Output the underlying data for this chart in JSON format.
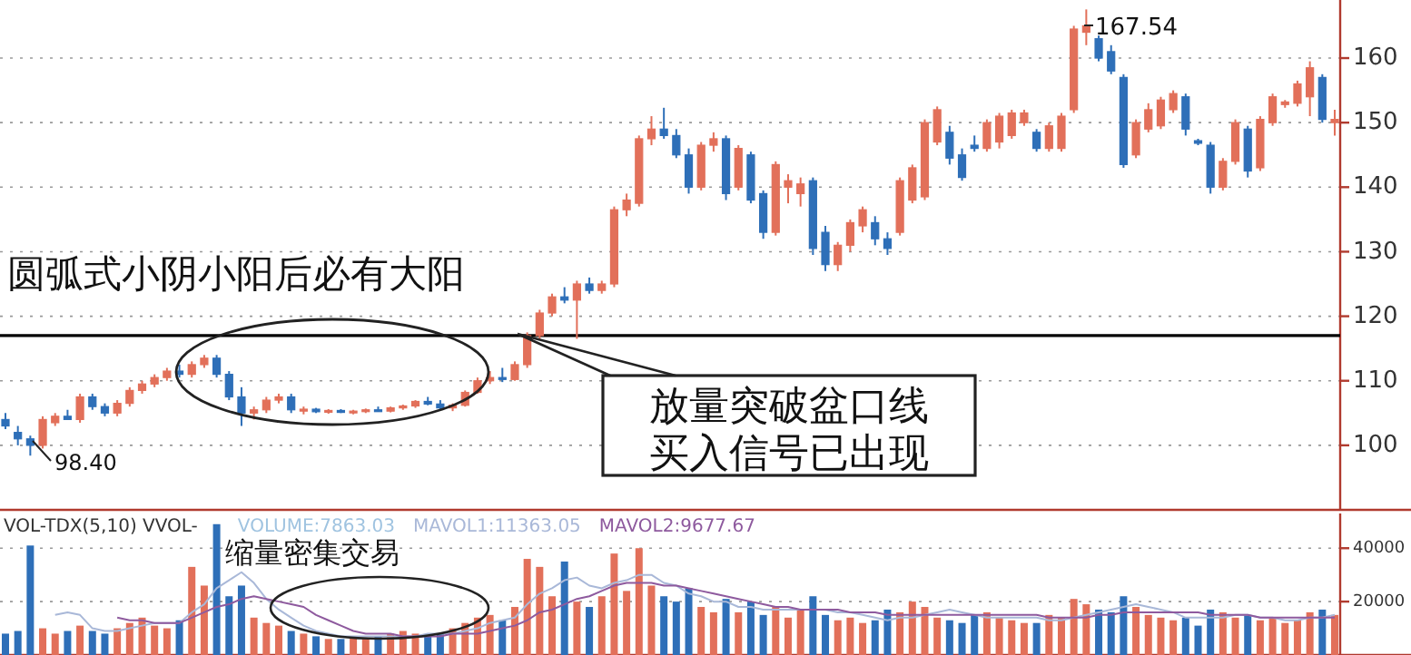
{
  "chart_data": [
    {
      "type": "candlestick",
      "tick_labels": "y",
      "grid": "y",
      "categories": [
        null,
        null,
        null,
        null,
        null,
        null,
        null,
        null,
        null,
        null,
        null,
        null,
        null,
        null,
        null,
        null,
        null,
        null,
        null,
        null,
        null,
        null,
        null,
        null,
        null,
        null,
        null,
        null,
        null,
        null,
        null,
        null,
        null,
        null,
        null,
        null,
        null,
        null,
        null,
        null,
        null,
        null,
        null,
        null,
        null,
        null,
        null,
        null,
        null,
        null,
        null,
        null,
        null,
        null,
        null,
        null,
        null,
        null,
        null,
        null,
        null,
        null,
        null,
        null,
        null,
        null,
        null,
        null,
        null,
        null,
        null,
        null,
        null,
        null,
        null,
        null,
        null,
        null,
        null,
        null,
        null,
        null,
        null,
        null,
        null,
        null,
        null,
        null,
        null,
        null,
        null,
        null,
        null,
        null,
        null,
        null,
        null,
        null,
        null,
        null,
        null,
        null,
        null,
        null,
        null,
        null,
        null,
        null
      ],
      "ohlc": [
        [
          104,
          105,
          102.5,
          103
        ],
        [
          102,
          103,
          100,
          101
        ],
        [
          101,
          101.5,
          98.4,
          100
        ],
        [
          100,
          104.5,
          99.5,
          104
        ],
        [
          103.5,
          105,
          103,
          104.5
        ],
        [
          104.5,
          105.5,
          104,
          104
        ],
        [
          104,
          108,
          103.5,
          107.5
        ],
        [
          107.5,
          108,
          105.5,
          106
        ],
        [
          106,
          106.5,
          104.5,
          105
        ],
        [
          105,
          107,
          104.5,
          106.5
        ],
        [
          106.5,
          109,
          106,
          108.5
        ],
        [
          108.5,
          110,
          108,
          109.5
        ],
        [
          109.5,
          111,
          109,
          110.5
        ],
        [
          110.5,
          112,
          110,
          111.5
        ],
        [
          111.5,
          112.5,
          110.5,
          111
        ],
        [
          111,
          113,
          110.5,
          112.5
        ],
        [
          112.5,
          114,
          112,
          113.5
        ],
        [
          113.5,
          114,
          110.5,
          111
        ],
        [
          111,
          111.5,
          107,
          107.5
        ],
        [
          107.5,
          109,
          103,
          105
        ],
        [
          105,
          106,
          104,
          105.5
        ],
        [
          105.5,
          107.5,
          105,
          107
        ],
        [
          107,
          108,
          106.5,
          107.5
        ],
        [
          107.5,
          108,
          105,
          105.5
        ],
        [
          105.3,
          106,
          104.8,
          105.6
        ],
        [
          105.6,
          105.8,
          105,
          105.2
        ],
        [
          105.2,
          105.6,
          104.9,
          105.4
        ],
        [
          105.4,
          105.6,
          105,
          105.1
        ],
        [
          105.1,
          105.5,
          104.8,
          105.3
        ],
        [
          105.3,
          105.7,
          105,
          105.5
        ],
        [
          105.5,
          106,
          105.2,
          105.3
        ],
        [
          105.3,
          106,
          105.1,
          105.8
        ],
        [
          105.8,
          106.3,
          105.5,
          106.1
        ],
        [
          106.1,
          107,
          105.8,
          106.8
        ],
        [
          106.8,
          107.5,
          106.2,
          106.4
        ],
        [
          106.4,
          107,
          105.6,
          105.8
        ],
        [
          105.8,
          106.5,
          105.3,
          106.2
        ],
        [
          106.2,
          108.5,
          106,
          108.2
        ],
        [
          108.2,
          110.5,
          108,
          110
        ],
        [
          110,
          111.5,
          109.5,
          110.5
        ],
        [
          110.5,
          112,
          109.8,
          110.2
        ],
        [
          110.2,
          113,
          110,
          112.5
        ],
        [
          112.5,
          117.5,
          112,
          117
        ],
        [
          117,
          121,
          116.5,
          120.5
        ],
        [
          120.5,
          123.5,
          120,
          123
        ],
        [
          123,
          124.5,
          122,
          122.5
        ],
        [
          122.5,
          125.5,
          116.5,
          125
        ],
        [
          125,
          126,
          123.5,
          124
        ],
        [
          124,
          125.5,
          123.5,
          125
        ],
        [
          125,
          137,
          124.5,
          136.5
        ],
        [
          136.5,
          139,
          135.5,
          138
        ],
        [
          137.5,
          148,
          137,
          147.5
        ],
        [
          147.5,
          151,
          146.5,
          149
        ],
        [
          149,
          152.3,
          147.5,
          148
        ],
        [
          148,
          149,
          144.5,
          145
        ],
        [
          145,
          146,
          139,
          140
        ],
        [
          140,
          147,
          139.5,
          146.5
        ],
        [
          146.5,
          148.5,
          145.5,
          147.5
        ],
        [
          147.5,
          148,
          138,
          139
        ],
        [
          140,
          146.5,
          139.5,
          146
        ],
        [
          145,
          145.5,
          137.5,
          138
        ],
        [
          139,
          139.5,
          132,
          133
        ],
        [
          133,
          144,
          132.5,
          143.5
        ],
        [
          140,
          142,
          137.5,
          141
        ],
        [
          139,
          141.5,
          137,
          140.5
        ],
        [
          141,
          141.5,
          129.5,
          130.5
        ],
        [
          133,
          134,
          127,
          128
        ],
        [
          128,
          131.5,
          127,
          131
        ],
        [
          131,
          135,
          130,
          134.5
        ],
        [
          134,
          137,
          133,
          136.5
        ],
        [
          134.5,
          135.5,
          131,
          132
        ],
        [
          132,
          133,
          129.5,
          130.5
        ],
        [
          133,
          141.5,
          132.5,
          141
        ],
        [
          138,
          143.5,
          137.5,
          143
        ],
        [
          138.5,
          150.5,
          138,
          150
        ],
        [
          147,
          152.5,
          146.5,
          152
        ],
        [
          148.5,
          149.5,
          143.5,
          144.5
        ],
        [
          145,
          146,
          141,
          141.5
        ],
        [
          146.5,
          148,
          145.5,
          146
        ],
        [
          146,
          150.5,
          145.5,
          150
        ],
        [
          147,
          151.5,
          146,
          151
        ],
        [
          148,
          152,
          147.5,
          151.5
        ],
        [
          150,
          152,
          149.5,
          151.5
        ],
        [
          148.5,
          149,
          145.5,
          146
        ],
        [
          146,
          150,
          145.5,
          149.5
        ],
        [
          146,
          151.5,
          145.5,
          151
        ],
        [
          152,
          165,
          151.5,
          164.5
        ],
        [
          164,
          167.54,
          162,
          165
        ],
        [
          163,
          163.5,
          159.5,
          160
        ],
        [
          161,
          162,
          157.5,
          158
        ],
        [
          157,
          157.5,
          143,
          143.5
        ],
        [
          145,
          150.5,
          144.5,
          150
        ],
        [
          149,
          153,
          148.5,
          152
        ],
        [
          149.5,
          154,
          149,
          153.5
        ],
        [
          152,
          155,
          151.5,
          154.5
        ],
        [
          154,
          154.5,
          148,
          149
        ],
        [
          147.2,
          147.5,
          146.5,
          146.8
        ],
        [
          146.5,
          147,
          139,
          140
        ],
        [
          140,
          144.5,
          139.5,
          144
        ],
        [
          144,
          150.5,
          143.5,
          150
        ],
        [
          149,
          149.5,
          141.5,
          142.5
        ],
        [
          143,
          151,
          142.5,
          150.5
        ],
        [
          150,
          154.5,
          149.5,
          154
        ],
        [
          152.8,
          153.5,
          152.3,
          153.2
        ],
        [
          153,
          156.5,
          152.5,
          156
        ],
        [
          154,
          159.5,
          151,
          158.5
        ],
        [
          157,
          157.5,
          150,
          150.5
        ],
        [
          150,
          152,
          148,
          150.5
        ]
      ],
      "colors": [
        "#2e6fb8",
        "#2e6fb8",
        "#2e6fb8",
        "#e2705a",
        "#e2705a",
        "#2e6fb8",
        "#e2705a",
        "#2e6fb8",
        "#2e6fb8",
        "#e2705a",
        "#e2705a",
        "#e2705a",
        "#e2705a",
        "#e2705a",
        "#2e6fb8",
        "#e2705a",
        "#e2705a",
        "#2e6fb8",
        "#2e6fb8",
        "#2e6fb8",
        "#e2705a",
        "#e2705a",
        "#e2705a",
        "#2e6fb8",
        "#e2705a",
        "#2e6fb8",
        "#e2705a",
        "#2e6fb8",
        "#e2705a",
        "#e2705a",
        "#2e6fb8",
        "#e2705a",
        "#e2705a",
        "#e2705a",
        "#2e6fb8",
        "#2e6fb8",
        "#e2705a",
        "#e2705a",
        "#e2705a",
        "#e2705a",
        "#2e6fb8",
        "#e2705a",
        "#e2705a",
        "#e2705a",
        "#e2705a",
        "#2e6fb8",
        "#e2705a",
        "#2e6fb8",
        "#e2705a",
        "#e2705a",
        "#e2705a",
        "#e2705a",
        "#e2705a",
        "#2e6fb8",
        "#2e6fb8",
        "#2e6fb8",
        "#e2705a",
        "#e2705a",
        "#2e6fb8",
        "#e2705a",
        "#2e6fb8",
        "#2e6fb8",
        "#e2705a",
        "#e2705a",
        "#e2705a",
        "#2e6fb8",
        "#2e6fb8",
        "#e2705a",
        "#e2705a",
        "#e2705a",
        "#2e6fb8",
        "#2e6fb8",
        "#e2705a",
        "#e2705a",
        "#e2705a",
        "#e2705a",
        "#2e6fb8",
        "#2e6fb8",
        "#2e6fb8",
        "#e2705a",
        "#e2705a",
        "#e2705a",
        "#e2705a",
        "#2e6fb8",
        "#e2705a",
        "#e2705a",
        "#e2705a",
        "#e2705a",
        "#2e6fb8",
        "#2e6fb8",
        "#2e6fb8",
        "#e2705a",
        "#e2705a",
        "#e2705a",
        "#e2705a",
        "#2e6fb8",
        "#2e6fb8",
        "#2e6fb8",
        "#e2705a",
        "#e2705a",
        "#2e6fb8",
        "#e2705a",
        "#e2705a",
        "#e2705a",
        "#e2705a",
        "#e2705a",
        "#2e6fb8",
        "#e2705a"
      ],
      "ylim": [
        90,
        169
      ],
      "yticks": [
        100,
        110,
        120,
        130,
        140,
        150,
        160
      ],
      "ref_lines": [
        {
          "axis": "y",
          "value": 117,
          "color": "#000000"
        }
      ],
      "annotations": [
        "圆弧式小阴小阳后必有大阳",
        "放量突破盆口线",
        "买入信号已出现",
        "98.40",
        "167.54"
      ]
    },
    {
      "type": "bar",
      "tick_labels": "y",
      "grid": "y",
      "title": "VOL-TDX(5,10)  VVOL-",
      "categories": [
        null,
        null,
        null,
        null,
        null,
        null,
        null,
        null,
        null,
        null,
        null,
        null,
        null,
        null,
        null,
        null,
        null,
        null,
        null,
        null,
        null,
        null,
        null,
        null,
        null,
        null,
        null,
        null,
        null,
        null,
        null,
        null,
        null,
        null,
        null,
        null,
        null,
        null,
        null,
        null,
        null,
        null,
        null,
        null,
        null,
        null,
        null,
        null,
        null,
        null,
        null,
        null,
        null,
        null,
        null,
        null,
        null,
        null,
        null,
        null,
        null,
        null,
        null,
        null,
        null,
        null,
        null,
        null,
        null,
        null,
        null,
        null,
        null,
        null,
        null,
        null,
        null,
        null,
        null,
        null,
        null,
        null,
        null,
        null,
        null,
        null,
        null,
        null,
        null,
        null,
        null,
        null,
        null,
        null,
        null,
        null,
        null,
        null,
        null,
        null,
        null,
        null,
        null,
        null,
        null,
        null,
        null,
        null
      ],
      "ylim": [
        0,
        53000
      ],
      "yticks": [
        20000,
        40000
      ],
      "series": [
        {
          "type": "bar",
          "values": [
            8000,
            9000,
            41000,
            10000,
            8000,
            9000,
            11000,
            9000,
            8000,
            10000,
            12000,
            14000,
            11000,
            10000,
            13000,
            33000,
            26000,
            49000,
            22000,
            26000,
            14000,
            12000,
            11000,
            9000,
            8000,
            7000,
            6000,
            6000,
            7000,
            6000,
            7000,
            8000,
            9000,
            8000,
            7000,
            8000,
            10000,
            12000,
            14000,
            15000,
            13000,
            18000,
            36000,
            33000,
            22000,
            35000,
            20000,
            18000,
            22000,
            38000,
            24000,
            40000,
            26000,
            22000,
            20000,
            25000,
            18000,
            16000,
            21000,
            16000,
            20000,
            15000,
            18000,
            14000,
            17000,
            22000,
            15000,
            13000,
            14000,
            12000,
            13000,
            17000,
            16000,
            20000,
            18000,
            14000,
            13000,
            12000,
            15000,
            16000,
            14000,
            13000,
            12000,
            12000,
            15000,
            14000,
            21000,
            19000,
            17000,
            16000,
            22000,
            18000,
            15000,
            14000,
            13000,
            14000,
            11000,
            17000,
            16000,
            14000,
            15000,
            13000,
            14000,
            12000,
            13000,
            16000,
            17000,
            15000
          ],
          "colors": [
            "#2e6fb8",
            "#2e6fb8",
            "#2e6fb8",
            "#e2705a",
            "#e2705a",
            "#2e6fb8",
            "#e2705a",
            "#2e6fb8",
            "#2e6fb8",
            "#e2705a",
            "#e2705a",
            "#e2705a",
            "#e2705a",
            "#e2705a",
            "#2e6fb8",
            "#e2705a",
            "#e2705a",
            "#2e6fb8",
            "#2e6fb8",
            "#2e6fb8",
            "#e2705a",
            "#e2705a",
            "#e2705a",
            "#2e6fb8",
            "#e2705a",
            "#2e6fb8",
            "#e2705a",
            "#2e6fb8",
            "#e2705a",
            "#e2705a",
            "#2e6fb8",
            "#e2705a",
            "#e2705a",
            "#e2705a",
            "#2e6fb8",
            "#2e6fb8",
            "#e2705a",
            "#e2705a",
            "#e2705a",
            "#e2705a",
            "#2e6fb8",
            "#e2705a",
            "#e2705a",
            "#e2705a",
            "#e2705a",
            "#2e6fb8",
            "#e2705a",
            "#2e6fb8",
            "#e2705a",
            "#e2705a",
            "#e2705a",
            "#e2705a",
            "#e2705a",
            "#2e6fb8",
            "#2e6fb8",
            "#2e6fb8",
            "#e2705a",
            "#e2705a",
            "#2e6fb8",
            "#e2705a",
            "#2e6fb8",
            "#2e6fb8",
            "#e2705a",
            "#e2705a",
            "#e2705a",
            "#2e6fb8",
            "#2e6fb8",
            "#e2705a",
            "#e2705a",
            "#e2705a",
            "#2e6fb8",
            "#2e6fb8",
            "#e2705a",
            "#e2705a",
            "#e2705a",
            "#e2705a",
            "#2e6fb8",
            "#2e6fb8",
            "#2e6fb8",
            "#e2705a",
            "#e2705a",
            "#e2705a",
            "#e2705a",
            "#2e6fb8",
            "#e2705a",
            "#e2705a",
            "#e2705a",
            "#e2705a",
            "#2e6fb8",
            "#2e6fb8",
            "#2e6fb8",
            "#e2705a",
            "#e2705a",
            "#e2705a",
            "#e2705a",
            "#2e6fb8",
            "#2e6fb8",
            "#2e6fb8",
            "#e2705a",
            "#e2705a",
            "#2e6fb8",
            "#e2705a",
            "#e2705a",
            "#e2705a",
            "#e2705a",
            "#e2705a",
            "#2e6fb8",
            "#e2705a"
          ]
        },
        {
          "name": "MAVOL1:11363.05",
          "type": "line",
          "color": "#a9b8d8",
          "values": [
            null,
            null,
            null,
            null,
            15000,
            16000,
            15000,
            10000,
            9000,
            9000,
            10000,
            11000,
            12000,
            12000,
            12000,
            16000,
            19000,
            25000,
            28000,
            31000,
            27000,
            21000,
            17000,
            14000,
            11000,
            9000,
            8000,
            7000,
            7000,
            7000,
            7000,
            7000,
            7000,
            7000,
            8000,
            8000,
            8000,
            9000,
            10000,
            12000,
            13000,
            14000,
            19000,
            23000,
            25000,
            28000,
            29000,
            26000,
            25000,
            27000,
            28000,
            30000,
            30000,
            27000,
            26000,
            23000,
            22000,
            20000,
            20000,
            18000,
            18000,
            17000,
            17000,
            17000,
            17000,
            17000,
            17000,
            16000,
            16000,
            15000,
            14000,
            13000,
            14000,
            14000,
            15000,
            16000,
            17000,
            16000,
            15000,
            14000,
            14000,
            14000,
            14000,
            14000,
            13000,
            13000,
            14000,
            15000,
            16000,
            17000,
            18000,
            19000,
            18000,
            17000,
            16000,
            14000,
            14000,
            14000,
            14000,
            15000,
            15000,
            14000,
            14000,
            13000,
            13000,
            14000,
            14000,
            15000
          ]
        },
        {
          "name": "MAVOL2:9677.67",
          "type": "line",
          "color": "#8e5a9e",
          "values": [
            null,
            null,
            null,
            null,
            null,
            null,
            null,
            null,
            null,
            14000,
            13000,
            13000,
            12000,
            12000,
            12000,
            14000,
            16000,
            18000,
            19000,
            21000,
            22000,
            21000,
            20000,
            19000,
            18000,
            15000,
            13000,
            11000,
            9000,
            8000,
            8000,
            8000,
            7000,
            7000,
            7000,
            7000,
            8000,
            8000,
            8000,
            9000,
            10000,
            11000,
            13000,
            16000,
            17000,
            19000,
            21000,
            22000,
            24000,
            26000,
            27000,
            27000,
            27000,
            26000,
            26000,
            25000,
            24000,
            23000,
            22000,
            21000,
            20000,
            19000,
            18000,
            18000,
            17000,
            17000,
            17000,
            17000,
            16000,
            16000,
            16000,
            15000,
            15000,
            15000,
            15000,
            15000,
            15000,
            15000,
            15000,
            15000,
            15000,
            15000,
            15000,
            15000,
            14000,
            14000,
            14000,
            14000,
            15000,
            15000,
            16000,
            16000,
            16000,
            16000,
            16000,
            16000,
            16000,
            15000,
            15000,
            15000,
            15000,
            14000,
            14000,
            14000,
            14000,
            14000,
            14000,
            14000
          ]
        }
      ],
      "annotations": [
        "VOLUME:7863.03",
        "缩量密集交易"
      ]
    }
  ]
}
